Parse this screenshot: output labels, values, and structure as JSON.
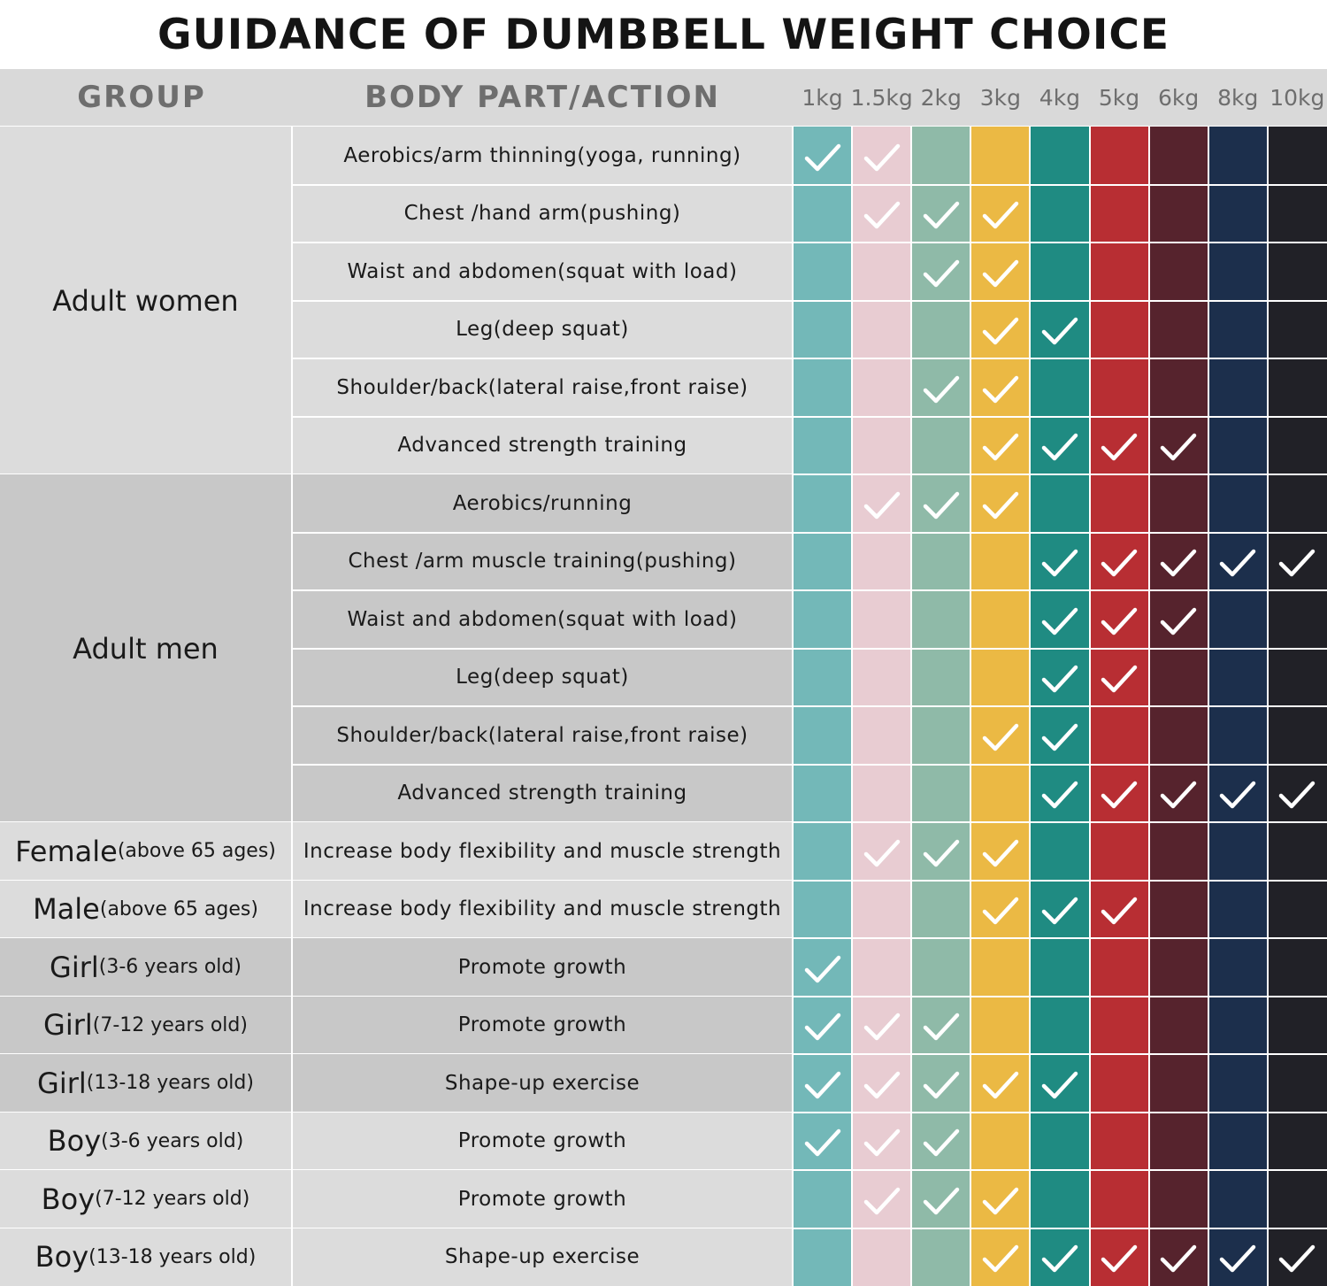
{
  "title": "GUIDANCE OF DUMBBELL WEIGHT CHOICE",
  "header": {
    "group": "GROUP",
    "action": "BODY PART/ACTION"
  },
  "weights": [
    {
      "label": "1kg",
      "color": "#73b8b8"
    },
    {
      "label": "1.5kg",
      "color": "#e8ccd2"
    },
    {
      "label": "2kg",
      "color": "#8fbaa8"
    },
    {
      "label": "3kg",
      "color": "#ebb944"
    },
    {
      "label": "4kg",
      "color": "#1f8b82"
    },
    {
      "label": "5kg",
      "color": "#b82e33"
    },
    {
      "label": "6kg",
      "color": "#56232d"
    },
    {
      "label": "8kg",
      "color": "#1c2f4c"
    },
    {
      "label": "10kg",
      "color": "#212127"
    }
  ],
  "groups": [
    {
      "main": "Adult women",
      "sub": "",
      "rows": [
        {
          "action": "Aerobics/arm thinning(yoga, running)",
          "checks": [
            1,
            1,
            0,
            0,
            0,
            0,
            0,
            0,
            0
          ]
        },
        {
          "action": "Chest /hand arm(pushing)",
          "checks": [
            0,
            1,
            1,
            1,
            0,
            0,
            0,
            0,
            0
          ]
        },
        {
          "action": "Waist and abdomen(squat with load)",
          "checks": [
            0,
            0,
            1,
            1,
            0,
            0,
            0,
            0,
            0
          ]
        },
        {
          "action": "Leg(deep squat)",
          "checks": [
            0,
            0,
            0,
            1,
            1,
            0,
            0,
            0,
            0
          ]
        },
        {
          "action": "Shoulder/back(lateral raise,front raise)",
          "checks": [
            0,
            0,
            1,
            1,
            0,
            0,
            0,
            0,
            0
          ]
        },
        {
          "action": "Advanced strength training",
          "checks": [
            0,
            0,
            0,
            1,
            1,
            1,
            1,
            0,
            0
          ]
        }
      ]
    },
    {
      "main": "Adult men",
      "sub": "",
      "rows": [
        {
          "action": "Aerobics/running",
          "checks": [
            0,
            1,
            1,
            1,
            0,
            0,
            0,
            0,
            0
          ]
        },
        {
          "action": "Chest /arm muscle training(pushing)",
          "checks": [
            0,
            0,
            0,
            0,
            1,
            1,
            1,
            1,
            1
          ]
        },
        {
          "action": "Waist and abdomen(squat with load)",
          "checks": [
            0,
            0,
            0,
            0,
            1,
            1,
            1,
            0,
            0
          ]
        },
        {
          "action": "Leg(deep squat)",
          "checks": [
            0,
            0,
            0,
            0,
            1,
            1,
            0,
            0,
            0
          ]
        },
        {
          "action": "Shoulder/back(lateral raise,front raise)",
          "checks": [
            0,
            0,
            0,
            1,
            1,
            0,
            0,
            0,
            0
          ]
        },
        {
          "action": "Advanced strength training",
          "checks": [
            0,
            0,
            0,
            0,
            1,
            1,
            1,
            1,
            1
          ]
        }
      ]
    },
    {
      "main": "Female",
      "sub": "(above 65 ages)",
      "rows": [
        {
          "action": "Increase body flexibility and muscle strength",
          "checks": [
            0,
            1,
            1,
            1,
            0,
            0,
            0,
            0,
            0
          ]
        }
      ]
    },
    {
      "main": "Male",
      "sub": "(above 65 ages)",
      "rows": [
        {
          "action": "Increase body flexibility and muscle strength",
          "checks": [
            0,
            0,
            0,
            1,
            1,
            1,
            0,
            0,
            0
          ]
        }
      ]
    },
    {
      "main": "Girl",
      "sub": "(3-6 years old)",
      "rows": [
        {
          "action": "Promote growth",
          "checks": [
            1,
            0,
            0,
            0,
            0,
            0,
            0,
            0,
            0
          ]
        }
      ]
    },
    {
      "main": "Girl",
      "sub": "(7-12 years old)",
      "rows": [
        {
          "action": "Promote growth",
          "checks": [
            1,
            1,
            1,
            0,
            0,
            0,
            0,
            0,
            0
          ]
        }
      ]
    },
    {
      "main": "Girl",
      "sub": "(13-18 years old)",
      "rows": [
        {
          "action": "Shape-up exercise",
          "checks": [
            1,
            1,
            1,
            1,
            1,
            0,
            0,
            0,
            0
          ]
        }
      ]
    },
    {
      "main": "Boy",
      "sub": "(3-6 years old)",
      "rows": [
        {
          "action": "Promote growth",
          "checks": [
            1,
            1,
            1,
            0,
            0,
            0,
            0,
            0,
            0
          ]
        }
      ]
    },
    {
      "main": "Boy",
      "sub": "(7-12 years old)",
      "rows": [
        {
          "action": "Promote growth",
          "checks": [
            0,
            1,
            1,
            1,
            0,
            0,
            0,
            0,
            0
          ]
        }
      ]
    },
    {
      "main": "Boy",
      "sub": "(13-18 years old)",
      "rows": [
        {
          "action": "Shape-up exercise",
          "checks": [
            0,
            0,
            0,
            1,
            1,
            1,
            1,
            1,
            1
          ]
        }
      ]
    }
  ]
}
